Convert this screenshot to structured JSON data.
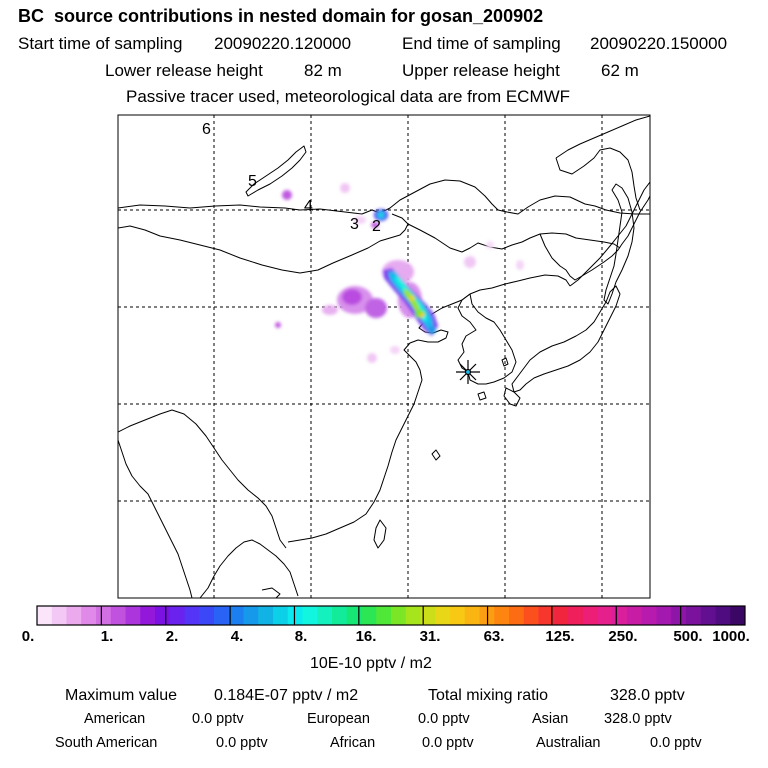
{
  "title": "BC  source contributions in nested domain for gosan_200902",
  "header": {
    "start_label": "Start time of sampling",
    "start_value": "20090220.120000",
    "end_label": "End time of sampling",
    "end_value": "20090220.150000",
    "lower_label": "Lower release height",
    "lower_value": "82 m",
    "upper_label": "Upper release height",
    "upper_value": "62 m",
    "tracer_note": "Passive tracer used, meteorological data are from ECMWF"
  },
  "map": {
    "markers": [
      "6",
      "5",
      "4",
      "3",
      "2"
    ],
    "receptor_icon": "asterisk-star-icon"
  },
  "colorbar": {
    "labels": [
      "0.",
      "1.",
      "2.",
      "4.",
      "8.",
      "16.",
      "31.",
      "63.",
      "125.",
      "250.",
      "500.",
      "1000."
    ],
    "unit": "10E-10 pptv / m2",
    "colors": [
      "#fbe5fb",
      "#f4c8f4",
      "#eba9ee",
      "#e089e8",
      "#d26fe3",
      "#c152e0",
      "#ac35dc",
      "#9418d9",
      "#7c11e3",
      "#6a22ee",
      "#5434f6",
      "#3a48f8",
      "#2963f5",
      "#1d7ef0",
      "#1699ea",
      "#10b3e4",
      "#0cd0e8",
      "#0bebef",
      "#12f6e0",
      "#14f1be",
      "#12ec9a",
      "#17e775",
      "#2de653",
      "#4fe738",
      "#7be626",
      "#a6e41c",
      "#ccde19",
      "#e8d717",
      "#f7c914",
      "#fbb512",
      "#fc9e11",
      "#fd8510",
      "#fd6c13",
      "#fb4f1e",
      "#f7372d",
      "#f2253f",
      "#ef1f5b",
      "#ec1e75",
      "#e51f8c",
      "#d91f9b",
      "#c91ca5",
      "#b71aad",
      "#a318ae",
      "#8e15a8",
      "#7a129e",
      "#630f92",
      "#4f0b80",
      "#3b0765"
    ]
  },
  "stats": {
    "max_label": "Maximum value",
    "max_value": "0.184E-07 pptv / m2",
    "total_label": "Total mixing ratio",
    "total_value": "328.0 pptv",
    "regions": [
      {
        "name": "American",
        "value": "0.0 pptv"
      },
      {
        "name": "European",
        "value": "0.0 pptv"
      },
      {
        "name": "Asian",
        "value": "328.0 pptv"
      },
      {
        "name": "South American",
        "value": "0.0 pptv"
      },
      {
        "name": "African",
        "value": "0.0 pptv"
      },
      {
        "name": "Australian",
        "value": "0.0 pptv"
      }
    ]
  }
}
